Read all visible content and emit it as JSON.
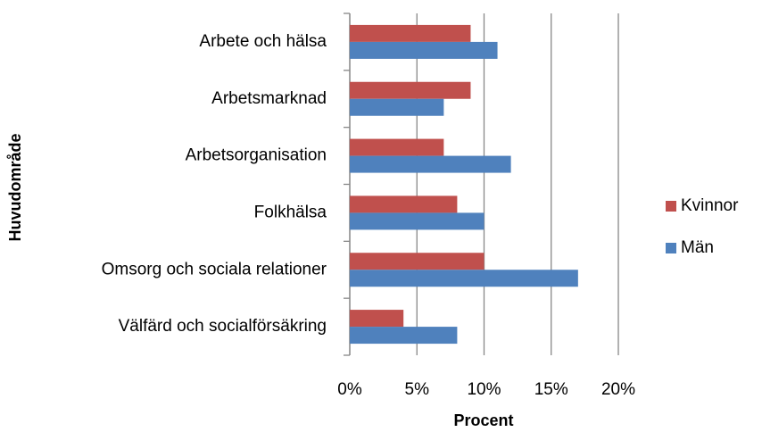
{
  "chart_data": {
    "type": "barh",
    "categories": [
      "Arbete och hälsa",
      "Arbetsmarknad",
      "Arbetsorganisation",
      "Folkhälsa",
      "Omsorg och sociala relationer",
      "Välfärd och socialförsäkring"
    ],
    "series": [
      {
        "name": "Kvinnor",
        "color": "#c0504d",
        "values": [
          9,
          9,
          7,
          8,
          10,
          4
        ]
      },
      {
        "name": "Män",
        "color": "#4f81bd",
        "values": [
          11,
          7,
          12,
          10,
          17,
          8
        ]
      }
    ],
    "xlim": [
      0,
      20
    ],
    "xticks": [
      {
        "value": 0,
        "label": "0%"
      },
      {
        "value": 5,
        "label": "5%"
      },
      {
        "value": 10,
        "label": "10%"
      },
      {
        "value": 15,
        "label": "15%"
      },
      {
        "value": 20,
        "label": "20%"
      }
    ],
    "xlabel": "Procent",
    "ylabel": "Huvudområde",
    "grid": true,
    "legend": "right"
  }
}
